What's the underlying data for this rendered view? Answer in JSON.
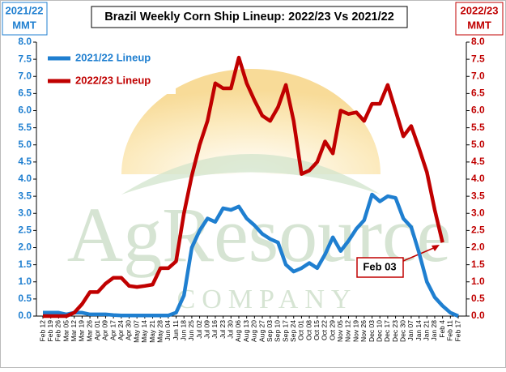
{
  "chart_data": {
    "type": "line",
    "title": "Brazil Weekly Corn Ship Lineup: 2022/23 Vs 2021/22",
    "y_label": [
      "2021/22",
      "MMT"
    ],
    "y2_label": [
      "2022/23",
      "MMT"
    ],
    "watermark": "AgResource",
    "watermark_sub": "COMPANY",
    "annotation": "Feb 03",
    "legend": "upper left",
    "categories": [
      "Feb 12",
      "Feb 19",
      "Feb 26",
      "Mar 05",
      "Mar 12",
      "Mar 19",
      "Mar 26",
      "Apr 01",
      "Apr 09",
      "Apr 17",
      "Apr 24",
      "Apr 30",
      "May 07",
      "May 14",
      "May 21",
      "May 28",
      "Jun 04",
      "Jun 11",
      "Jun 18",
      "Jun 25",
      "Jul 02",
      "Jul 09",
      "Jul 16",
      "Jul 23",
      "Jul 30",
      "Aug 06",
      "Aug 13",
      "Aug 20",
      "Aug 27",
      "Sep 03",
      "Sep 10",
      "Sep 17",
      "Sep 24",
      "Oct 01",
      "Oct 08",
      "Oct 15",
      "Oct 22",
      "Oct 29",
      "Nov 05",
      "Nov 12",
      "Nov 19",
      "Nov 26",
      "Dec 03",
      "Dec 10",
      "Dec 17",
      "Dec 23",
      "Dec 30",
      "Jan 07",
      "Jan 14",
      "Jan 21",
      "Jan 28",
      "Feb 4",
      "Feb 11",
      "Feb 17"
    ],
    "series": [
      {
        "name": "2021/22 Lineup",
        "color": "#1f7fd0",
        "axis": "y",
        "values": [
          0.1,
          0.1,
          0.1,
          0.05,
          0.1,
          0.1,
          0.05,
          0.05,
          0.05,
          0.03,
          0.02,
          0.02,
          0.02,
          0.02,
          0.02,
          0.02,
          0.02,
          0.1,
          0.6,
          2.0,
          2.5,
          2.85,
          2.75,
          3.15,
          3.1,
          3.2,
          2.85,
          2.65,
          2.4,
          2.25,
          2.15,
          1.5,
          1.3,
          1.4,
          1.55,
          1.4,
          1.8,
          2.3,
          1.9,
          2.2,
          2.55,
          2.8,
          3.55,
          3.35,
          3.5,
          3.45,
          2.85,
          2.6,
          1.85,
          1.0,
          0.55,
          0.3,
          0.1,
          0.0
        ]
      },
      {
        "name": "2022/23 Lineup",
        "color": "#c00000",
        "axis": "y2",
        "values": [
          0.0,
          0.0,
          0.0,
          0.0,
          0.1,
          0.35,
          0.7,
          0.7,
          0.95,
          1.12,
          1.12,
          0.88,
          0.85,
          0.88,
          0.92,
          1.4,
          1.4,
          1.6,
          3.0,
          4.1,
          5.0,
          5.7,
          6.8,
          6.65,
          6.65,
          7.55,
          6.8,
          6.3,
          5.85,
          5.7,
          6.1,
          6.75,
          5.7,
          4.15,
          4.25,
          4.5,
          5.1,
          4.75,
          6.0,
          5.9,
          5.95,
          5.7,
          6.2,
          6.2,
          6.75,
          6.0,
          5.25,
          5.55,
          4.9,
          4.2,
          3.1,
          2.15,
          null,
          null
        ]
      }
    ],
    "ylim": [
      0,
      8
    ],
    "yticks": [
      {
        "value": 0,
        "label": "0.0"
      },
      {
        "value": 0.5,
        "label": "0.5"
      },
      {
        "value": 1,
        "label": "1.0"
      },
      {
        "value": 1.5,
        "label": "1.5"
      },
      {
        "value": 2,
        "label": "2.0"
      },
      {
        "value": 2.5,
        "label": "2.5"
      },
      {
        "value": 3,
        "label": "3.0"
      },
      {
        "value": 3.5,
        "label": "3.5"
      },
      {
        "value": 4,
        "label": "4.0"
      },
      {
        "value": 4.5,
        "label": "4.5"
      },
      {
        "value": 5,
        "label": "5.0"
      },
      {
        "value": 5.5,
        "label": "5.5"
      },
      {
        "value": 6,
        "label": "6.0"
      },
      {
        "value": 6.5,
        "label": "6.5"
      },
      {
        "value": 7,
        "label": "7.0"
      },
      {
        "value": 7.5,
        "label": "7.5"
      },
      {
        "value": 8,
        "label": "8.0"
      }
    ],
    "y2lim": [
      0,
      8
    ],
    "y2ticks": [
      {
        "value": 0,
        "label": "0.0"
      },
      {
        "value": 0.5,
        "label": "0.5"
      },
      {
        "value": 1,
        "label": "1.0"
      },
      {
        "value": 1.5,
        "label": "1.5"
      },
      {
        "value": 2,
        "label": "2.0"
      },
      {
        "value": 2.5,
        "label": "2.5"
      },
      {
        "value": 3,
        "label": "3.0"
      },
      {
        "value": 3.5,
        "label": "3.5"
      },
      {
        "value": 4,
        "label": "4.0"
      },
      {
        "value": 4.5,
        "label": "4.5"
      },
      {
        "value": 5,
        "label": "5.0"
      },
      {
        "value": 5.5,
        "label": "5.5"
      },
      {
        "value": 6,
        "label": "6.0"
      },
      {
        "value": 6.5,
        "label": "6.5"
      },
      {
        "value": 7,
        "label": "7.0"
      },
      {
        "value": 7.5,
        "label": "7.5"
      },
      {
        "value": 8,
        "label": "8.0"
      }
    ],
    "grid": false
  }
}
